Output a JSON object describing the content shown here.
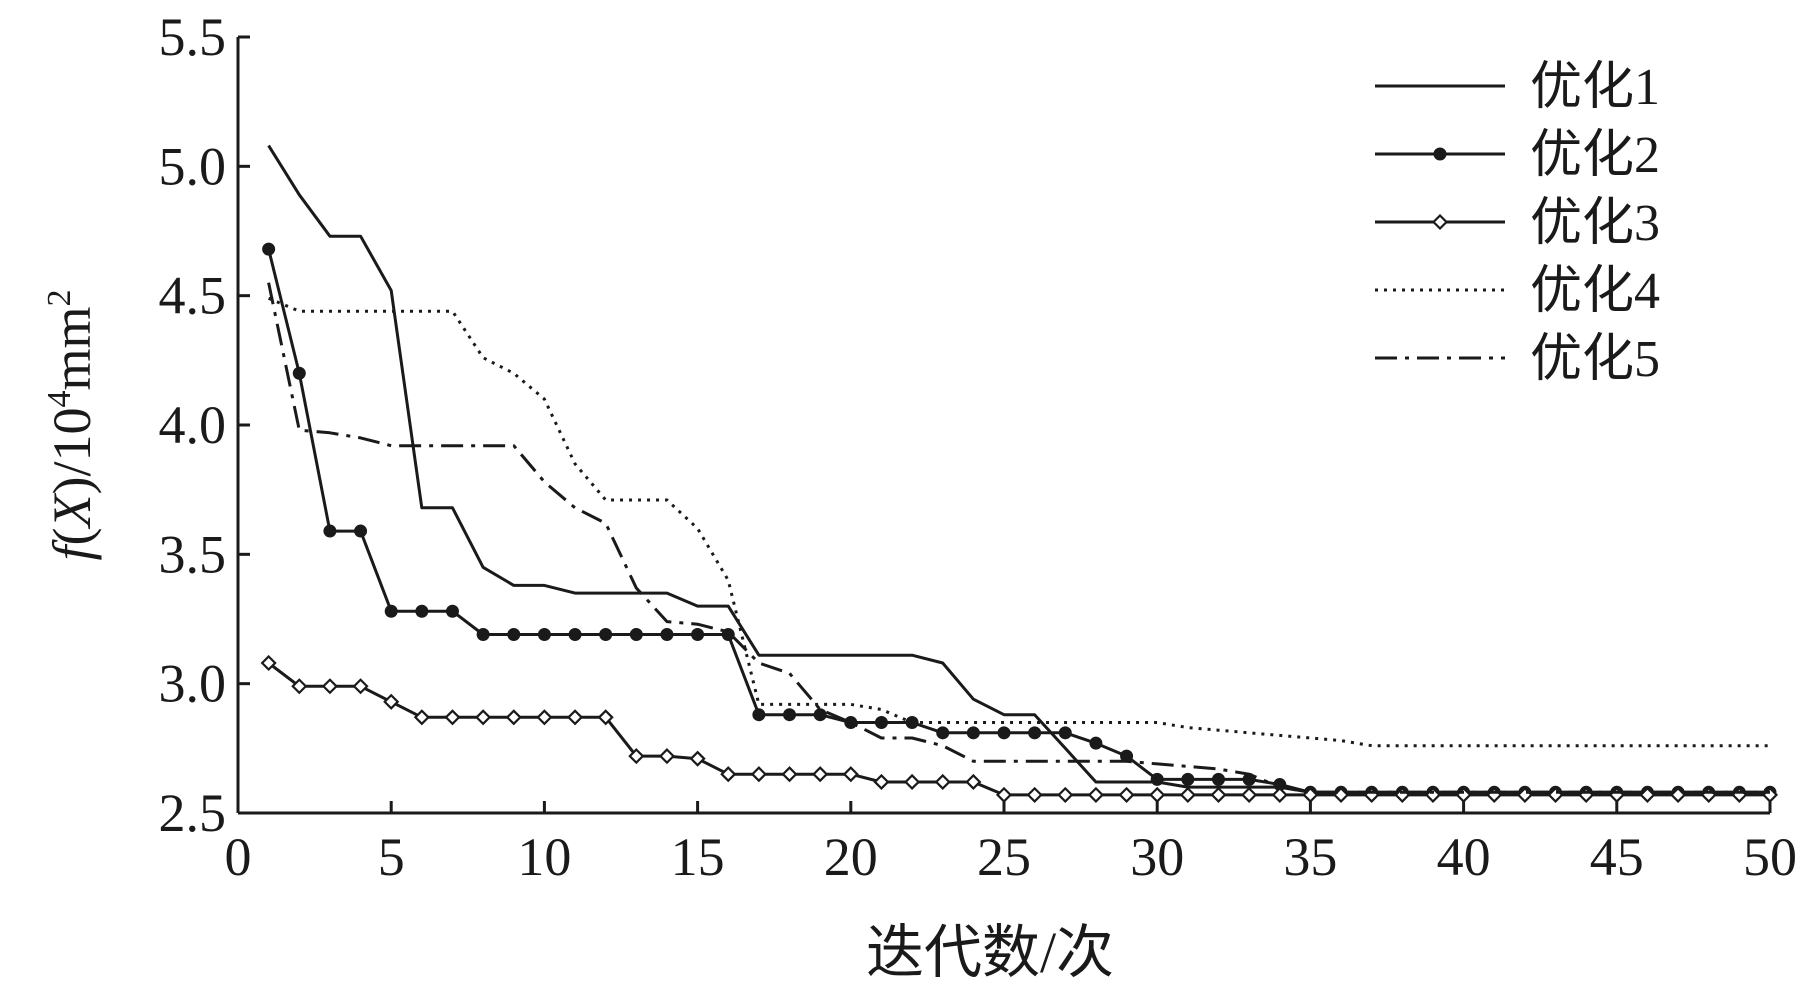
{
  "chart_data": {
    "type": "line",
    "xlabel": "迭代数/次",
    "ylabel_parts": {
      "f": "f",
      "lp": "(",
      "X": "X",
      "rp": ")/10",
      "exp": "4",
      "unit": "mm",
      "sq": "2"
    },
    "xlim": [
      0,
      50
    ],
    "ylim": [
      2.5,
      5.5
    ],
    "xticks": [
      0,
      5,
      10,
      15,
      20,
      25,
      30,
      35,
      40,
      45,
      50
    ],
    "yticks": [
      "2.5",
      "3.0",
      "3.5",
      "4.0",
      "4.5",
      "5.0",
      "5.5"
    ],
    "legend_position": "top-right",
    "series": [
      {
        "name": "优化1",
        "style": "solid",
        "marker": "none",
        "points": [
          [
            1,
            5.08
          ],
          [
            2,
            4.89
          ],
          [
            3,
            4.73
          ],
          [
            4,
            4.73
          ],
          [
            5,
            4.52
          ],
          [
            6,
            3.68
          ],
          [
            7,
            3.68
          ],
          [
            8,
            3.45
          ],
          [
            9,
            3.38
          ],
          [
            10,
            3.38
          ],
          [
            11,
            3.35
          ],
          [
            12,
            3.35
          ],
          [
            13,
            3.35
          ],
          [
            14,
            3.35
          ],
          [
            15,
            3.3
          ],
          [
            16,
            3.3
          ],
          [
            17,
            3.11
          ],
          [
            18,
            3.11
          ],
          [
            19,
            3.11
          ],
          [
            20,
            3.11
          ],
          [
            21,
            3.11
          ],
          [
            22,
            3.11
          ],
          [
            23,
            3.08
          ],
          [
            24,
            2.94
          ],
          [
            25,
            2.88
          ],
          [
            26,
            2.88
          ],
          [
            27,
            2.75
          ],
          [
            28,
            2.62
          ],
          [
            29,
            2.62
          ],
          [
            30,
            2.62
          ],
          [
            31,
            2.6
          ],
          [
            32,
            2.6
          ],
          [
            33,
            2.6
          ],
          [
            34,
            2.6
          ],
          [
            35,
            2.58
          ],
          [
            36,
            2.58
          ],
          [
            37,
            2.58
          ],
          [
            38,
            2.58
          ],
          [
            39,
            2.58
          ],
          [
            40,
            2.58
          ],
          [
            41,
            2.58
          ],
          [
            42,
            2.58
          ],
          [
            43,
            2.58
          ],
          [
            44,
            2.58
          ],
          [
            45,
            2.58
          ],
          [
            46,
            2.58
          ],
          [
            47,
            2.58
          ],
          [
            48,
            2.58
          ],
          [
            49,
            2.58
          ],
          [
            50,
            2.58
          ]
        ]
      },
      {
        "name": "优化2",
        "style": "solid",
        "marker": "filled-circle",
        "points": [
          [
            1,
            4.68
          ],
          [
            2,
            4.2
          ],
          [
            3,
            3.59
          ],
          [
            4,
            3.59
          ],
          [
            5,
            3.28
          ],
          [
            6,
            3.28
          ],
          [
            7,
            3.28
          ],
          [
            8,
            3.19
          ],
          [
            9,
            3.19
          ],
          [
            10,
            3.19
          ],
          [
            11,
            3.19
          ],
          [
            12,
            3.19
          ],
          [
            13,
            3.19
          ],
          [
            14,
            3.19
          ],
          [
            15,
            3.19
          ],
          [
            16,
            3.19
          ],
          [
            17,
            2.88
          ],
          [
            18,
            2.88
          ],
          [
            19,
            2.88
          ],
          [
            20,
            2.85
          ],
          [
            21,
            2.85
          ],
          [
            22,
            2.85
          ],
          [
            23,
            2.81
          ],
          [
            24,
            2.81
          ],
          [
            25,
            2.81
          ],
          [
            26,
            2.81
          ],
          [
            27,
            2.81
          ],
          [
            28,
            2.77
          ],
          [
            29,
            2.72
          ],
          [
            30,
            2.63
          ],
          [
            31,
            2.63
          ],
          [
            32,
            2.63
          ],
          [
            33,
            2.63
          ],
          [
            34,
            2.61
          ],
          [
            35,
            2.58
          ],
          [
            36,
            2.58
          ],
          [
            37,
            2.58
          ],
          [
            38,
            2.58
          ],
          [
            39,
            2.58
          ],
          [
            40,
            2.58
          ],
          [
            41,
            2.58
          ],
          [
            42,
            2.58
          ],
          [
            43,
            2.58
          ],
          [
            44,
            2.58
          ],
          [
            45,
            2.58
          ],
          [
            46,
            2.58
          ],
          [
            47,
            2.58
          ],
          [
            48,
            2.58
          ],
          [
            49,
            2.58
          ],
          [
            50,
            2.58
          ]
        ]
      },
      {
        "name": "优化3",
        "style": "solid",
        "marker": "open-diamond",
        "points": [
          [
            1,
            3.08
          ],
          [
            2,
            2.99
          ],
          [
            3,
            2.99
          ],
          [
            4,
            2.99
          ],
          [
            5,
            2.93
          ],
          [
            6,
            2.87
          ],
          [
            7,
            2.87
          ],
          [
            8,
            2.87
          ],
          [
            9,
            2.87
          ],
          [
            10,
            2.87
          ],
          [
            11,
            2.87
          ],
          [
            12,
            2.87
          ],
          [
            13,
            2.72
          ],
          [
            14,
            2.72
          ],
          [
            15,
            2.71
          ],
          [
            16,
            2.65
          ],
          [
            17,
            2.65
          ],
          [
            18,
            2.65
          ],
          [
            19,
            2.65
          ],
          [
            20,
            2.65
          ],
          [
            21,
            2.62
          ],
          [
            22,
            2.62
          ],
          [
            23,
            2.62
          ],
          [
            24,
            2.62
          ],
          [
            25,
            2.57
          ],
          [
            26,
            2.57
          ],
          [
            27,
            2.57
          ],
          [
            28,
            2.57
          ],
          [
            29,
            2.57
          ],
          [
            30,
            2.57
          ],
          [
            31,
            2.57
          ],
          [
            32,
            2.57
          ],
          [
            33,
            2.57
          ],
          [
            34,
            2.57
          ],
          [
            35,
            2.57
          ],
          [
            36,
            2.57
          ],
          [
            37,
            2.57
          ],
          [
            38,
            2.57
          ],
          [
            39,
            2.57
          ],
          [
            40,
            2.57
          ],
          [
            41,
            2.57
          ],
          [
            42,
            2.57
          ],
          [
            43,
            2.57
          ],
          [
            44,
            2.57
          ],
          [
            45,
            2.57
          ],
          [
            46,
            2.57
          ],
          [
            47,
            2.57
          ],
          [
            48,
            2.57
          ],
          [
            49,
            2.57
          ],
          [
            50,
            2.57
          ]
        ]
      },
      {
        "name": "优化4",
        "style": "dotted",
        "marker": "none",
        "points": [
          [
            1,
            4.49
          ],
          [
            2,
            4.44
          ],
          [
            3,
            4.44
          ],
          [
            4,
            4.44
          ],
          [
            5,
            4.44
          ],
          [
            6,
            4.44
          ],
          [
            7,
            4.44
          ],
          [
            8,
            4.26
          ],
          [
            9,
            4.2
          ],
          [
            10,
            4.1
          ],
          [
            11,
            3.85
          ],
          [
            12,
            3.71
          ],
          [
            13,
            3.71
          ],
          [
            14,
            3.71
          ],
          [
            15,
            3.6
          ],
          [
            16,
            3.4
          ],
          [
            17,
            2.92
          ],
          [
            18,
            2.92
          ],
          [
            19,
            2.92
          ],
          [
            20,
            2.92
          ],
          [
            21,
            2.9
          ],
          [
            22,
            2.85
          ],
          [
            23,
            2.85
          ],
          [
            24,
            2.85
          ],
          [
            25,
            2.85
          ],
          [
            26,
            2.85
          ],
          [
            27,
            2.85
          ],
          [
            28,
            2.85
          ],
          [
            29,
            2.85
          ],
          [
            30,
            2.85
          ],
          [
            31,
            2.83
          ],
          [
            32,
            2.82
          ],
          [
            33,
            2.81
          ],
          [
            34,
            2.8
          ],
          [
            35,
            2.79
          ],
          [
            36,
            2.78
          ],
          [
            37,
            2.76
          ],
          [
            38,
            2.76
          ],
          [
            39,
            2.76
          ],
          [
            40,
            2.76
          ],
          [
            41,
            2.76
          ],
          [
            42,
            2.76
          ],
          [
            43,
            2.76
          ],
          [
            44,
            2.76
          ],
          [
            45,
            2.76
          ],
          [
            46,
            2.76
          ],
          [
            47,
            2.76
          ],
          [
            48,
            2.76
          ],
          [
            49,
            2.76
          ],
          [
            50,
            2.76
          ]
        ]
      },
      {
        "name": "优化5",
        "style": "dashdot",
        "marker": "none",
        "points": [
          [
            1,
            4.55
          ],
          [
            2,
            3.98
          ],
          [
            3,
            3.97
          ],
          [
            4,
            3.95
          ],
          [
            5,
            3.92
          ],
          [
            6,
            3.92
          ],
          [
            7,
            3.92
          ],
          [
            8,
            3.92
          ],
          [
            9,
            3.92
          ],
          [
            10,
            3.78
          ],
          [
            11,
            3.68
          ],
          [
            12,
            3.62
          ],
          [
            13,
            3.37
          ],
          [
            14,
            3.24
          ],
          [
            15,
            3.23
          ],
          [
            16,
            3.2
          ],
          [
            17,
            3.08
          ],
          [
            18,
            3.04
          ],
          [
            19,
            2.9
          ],
          [
            20,
            2.85
          ],
          [
            21,
            2.79
          ],
          [
            22,
            2.79
          ],
          [
            23,
            2.76
          ],
          [
            24,
            2.7
          ],
          [
            25,
            2.7
          ],
          [
            26,
            2.7
          ],
          [
            27,
            2.7
          ],
          [
            28,
            2.7
          ],
          [
            29,
            2.7
          ],
          [
            30,
            2.69
          ],
          [
            31,
            2.68
          ],
          [
            32,
            2.67
          ],
          [
            33,
            2.65
          ],
          [
            34,
            2.6
          ],
          [
            35,
            2.58
          ],
          [
            36,
            2.58
          ],
          [
            37,
            2.58
          ],
          [
            38,
            2.58
          ],
          [
            39,
            2.58
          ],
          [
            40,
            2.58
          ],
          [
            41,
            2.58
          ],
          [
            42,
            2.58
          ],
          [
            43,
            2.58
          ],
          [
            44,
            2.58
          ],
          [
            45,
            2.58
          ],
          [
            46,
            2.58
          ],
          [
            47,
            2.58
          ],
          [
            48,
            2.58
          ],
          [
            49,
            2.58
          ],
          [
            50,
            2.58
          ]
        ]
      }
    ]
  }
}
